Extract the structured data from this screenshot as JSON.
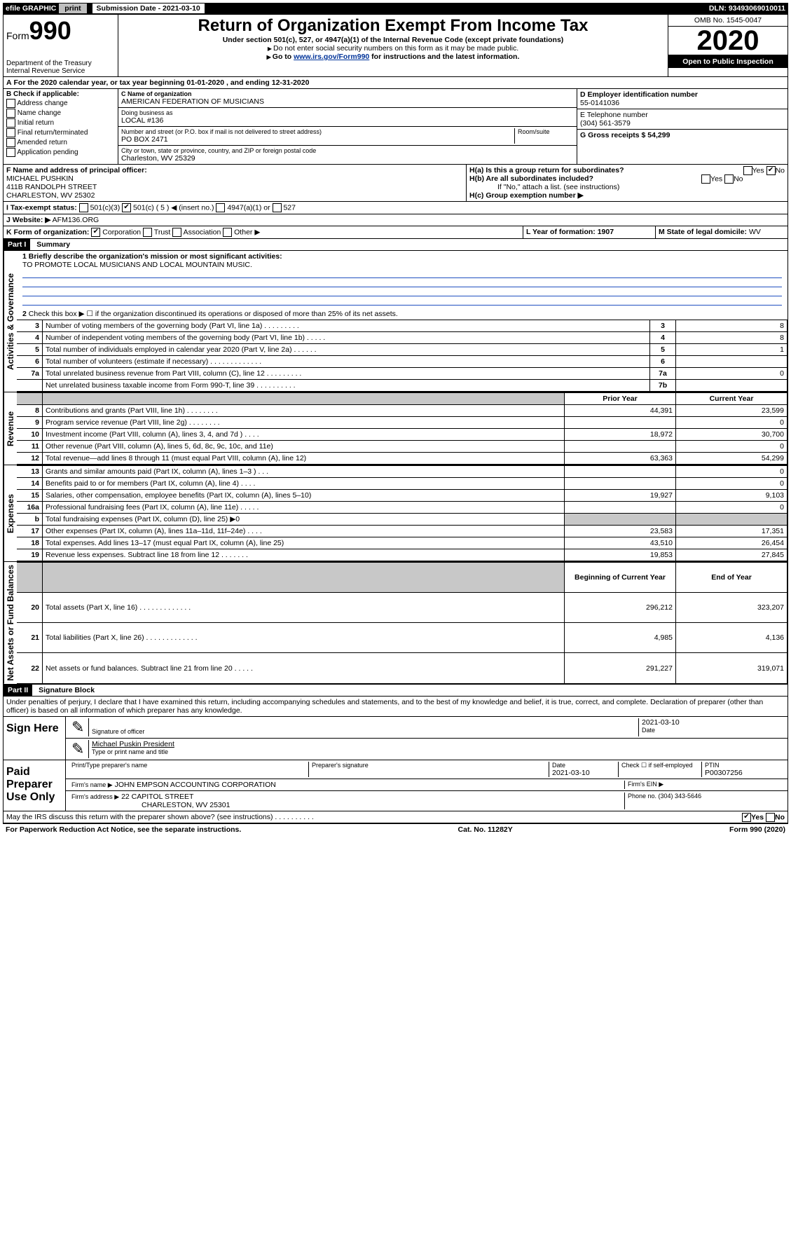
{
  "top_bar": {
    "efile": "efile GRAPHIC",
    "print": "print",
    "sub_date_label": "Submission Date - 2021-03-10",
    "dln": "DLN: 93493069010011"
  },
  "header": {
    "form_label": "Form",
    "form_number": "990",
    "dept": "Department of the Treasury",
    "irs": "Internal Revenue Service",
    "title": "Return of Organization Exempt From Income Tax",
    "subtitle": "Under section 501(c), 527, or 4947(a)(1) of the Internal Revenue Code (except private foundations)",
    "note1": "Do not enter social security numbers on this form as it may be made public.",
    "note2_a": "Go to ",
    "note2_link": "www.irs.gov/Form990",
    "note2_b": " for instructions and the latest information.",
    "omb": "OMB No. 1545-0047",
    "year": "2020",
    "public": "Open to Public Inspection"
  },
  "row_a": {
    "text": "For the 2020 calendar year, or tax year beginning 01-01-2020   , and ending 12-31-2020"
  },
  "col_b": {
    "header": "B Check if applicable:",
    "items": [
      "Address change",
      "Name change",
      "Initial return",
      "Final return/terminated",
      "Amended return",
      "Application pending"
    ]
  },
  "org": {
    "c_label": "C Name of organization",
    "name": "AMERICAN FEDERATION OF MUSICIANS",
    "dba_label": "Doing business as",
    "dba": "LOCAL #136",
    "addr_label": "Number and street (or P.O. box if mail is not delivered to street address)",
    "room_label": "Room/suite",
    "addr": "PO BOX 2471",
    "city_label": "City or town, state or province, country, and ZIP or foreign postal code",
    "city": "Charleston, WV  25329",
    "d_label": "D Employer identification number",
    "ein": "55-0141036",
    "e_label": "E Telephone number",
    "phone": "(304) 561-3579",
    "g_label": "G Gross receipts $ 54,299"
  },
  "officer": {
    "f_label": "F  Name and address of principal officer:",
    "name": "MICHAEL PUSHKIN",
    "addr1": "411B RANDOLPH STREET",
    "addr2": "CHARLESTON, WV  25302"
  },
  "h": {
    "a": "H(a)  Is this a group return for subordinates?",
    "b": "H(b)  Are all subordinates included?",
    "b_note": "If \"No,\" attach a list. (see instructions)",
    "c": "H(c)  Group exemption number ▶"
  },
  "tax_status": {
    "i_label": "I  Tax-exempt status:",
    "opt1": "501(c)(3)",
    "opt2": "501(c) ( 5 ) ◀ (insert no.)",
    "opt3": "4947(a)(1) or",
    "opt4": "527"
  },
  "website": {
    "j_label": "J Website: ▶",
    "value": "AFM136.ORG"
  },
  "k": {
    "label": "K Form of organization:",
    "opts": [
      "Corporation",
      "Trust",
      "Association",
      "Other ▶"
    ]
  },
  "l": {
    "label": "L Year of formation: 1907"
  },
  "m": {
    "label": "M State of legal domicile:",
    "value": "WV"
  },
  "part1": {
    "header": "Part I",
    "title": "Summary"
  },
  "summary": {
    "q1_label": "1  Briefly describe the organization's mission or most significant activities:",
    "q1_text": "TO PROMOTE LOCAL MUSICIANS AND LOCAL MOUNTAIN MUSIC.",
    "q2": "Check this box ▶ ☐  if the organization discontinued its operations or disposed of more than 25% of its net assets.",
    "rows_gov": [
      {
        "n": "3",
        "desc": "Number of voting members of the governing body (Part VI, line 1a)  .    .    .    .    .    .    .    .    .",
        "lab": "3",
        "v2": "8"
      },
      {
        "n": "4",
        "desc": "Number of independent voting members of the governing body (Part VI, line 1b)  .    .    .    .    .",
        "lab": "4",
        "v2": "8"
      },
      {
        "n": "5",
        "desc": "Total number of individuals employed in calendar year 2020 (Part V, line 2a)  .    .    .    .    .    .",
        "lab": "5",
        "v2": "1"
      },
      {
        "n": "6",
        "desc": "Total number of volunteers (estimate if necessary)  .    .    .    .    .    .    .    .    .    .    .    .    .",
        "lab": "6",
        "v2": ""
      },
      {
        "n": "7a",
        "desc": "Total unrelated business revenue from Part VIII, column (C), line 12  .    .    .    .    .    .    .    .    .",
        "lab": "7a",
        "v2": "0"
      },
      {
        "n": "",
        "desc": "Net unrelated business taxable income from Form 990-T, line 39  .    .    .    .    .    .    .    .    .    .",
        "lab": "7b",
        "v2": ""
      }
    ],
    "hdr_prior": "Prior Year",
    "hdr_current": "Current Year",
    "rows_rev": [
      {
        "n": "8",
        "desc": "Contributions and grants (Part VIII, line 1h)  .    .    .    .    .    .    .    .",
        "v1": "44,391",
        "v2": "23,599"
      },
      {
        "n": "9",
        "desc": "Program service revenue (Part VIII, line 2g)  .    .    .    .    .    .    .    .",
        "v1": "",
        "v2": "0"
      },
      {
        "n": "10",
        "desc": "Investment income (Part VIII, column (A), lines 3, 4, and 7d )  .    .    .    .",
        "v1": "18,972",
        "v2": "30,700"
      },
      {
        "n": "11",
        "desc": "Other revenue (Part VIII, column (A), lines 5, 6d, 8c, 9c, 10c, and 11e)",
        "v1": "",
        "v2": "0"
      },
      {
        "n": "12",
        "desc": "Total revenue—add lines 8 through 11 (must equal Part VIII, column (A), line 12)",
        "v1": "63,363",
        "v2": "54,299"
      }
    ],
    "rows_exp": [
      {
        "n": "13",
        "desc": "Grants and similar amounts paid (Part IX, column (A), lines 1–3 )  .    .    .",
        "v1": "",
        "v2": "0"
      },
      {
        "n": "14",
        "desc": "Benefits paid to or for members (Part IX, column (A), line 4)  .    .    .    .",
        "v1": "",
        "v2": "0"
      },
      {
        "n": "15",
        "desc": "Salaries, other compensation, employee benefits (Part IX, column (A), lines 5–10)",
        "v1": "19,927",
        "v2": "9,103"
      },
      {
        "n": "16a",
        "desc": "Professional fundraising fees (Part IX, column (A), line 11e)  .    .    .    .    .",
        "v1": "",
        "v2": "0"
      },
      {
        "n": "b",
        "desc": "Total fundraising expenses (Part IX, column (D), line 25) ▶0",
        "v1": "shaded",
        "v2": "shaded"
      },
      {
        "n": "17",
        "desc": "Other expenses (Part IX, column (A), lines 11a–11d, 11f–24e)  .    .    .    .",
        "v1": "23,583",
        "v2": "17,351"
      },
      {
        "n": "18",
        "desc": "Total expenses. Add lines 13–17 (must equal Part IX, column (A), line 25)",
        "v1": "43,510",
        "v2": "26,454"
      },
      {
        "n": "19",
        "desc": "Revenue less expenses. Subtract line 18 from line 12  .    .    .    .    .    .    .",
        "v1": "19,853",
        "v2": "27,845"
      }
    ],
    "hdr_begin": "Beginning of Current Year",
    "hdr_end": "End of Year",
    "rows_net": [
      {
        "n": "20",
        "desc": "Total assets (Part X, line 16)  .    .    .    .    .    .    .    .    .    .    .    .    .",
        "v1": "296,212",
        "v2": "323,207"
      },
      {
        "n": "21",
        "desc": "Total liabilities (Part X, line 26)  .    .    .    .    .    .    .    .    .    .    .    .    .",
        "v1": "4,985",
        "v2": "4,136"
      },
      {
        "n": "22",
        "desc": "Net assets or fund balances. Subtract line 21 from line 20  .    .    .    .    .",
        "v1": "291,227",
        "v2": "319,071"
      }
    ],
    "vert_gov": "Activities & Governance",
    "vert_rev": "Revenue",
    "vert_exp": "Expenses",
    "vert_net": "Net Assets or Fund Balances"
  },
  "part2": {
    "header": "Part II",
    "title": "Signature Block",
    "perjury": "Under penalties of perjury, I declare that I have examined this return, including accompanying schedules and statements, and to the best of my knowledge and belief, it is true, correct, and complete. Declaration of preparer (other than officer) is based on all information of which preparer has any knowledge."
  },
  "sign": {
    "here": "Sign Here",
    "sig_label": "Signature of officer",
    "date": "2021-03-10",
    "date_label": "Date",
    "name": "Michael Puskin  President",
    "name_label": "Type or print name and title"
  },
  "paid": {
    "label": "Paid Preparer Use Only",
    "prep_name_label": "Print/Type preparer's name",
    "prep_sig_label": "Preparer's signature",
    "date_label": "Date",
    "date": "2021-03-10",
    "check_label": "Check ☐ if self-employed",
    "ptin_label": "PTIN",
    "ptin": "P00307256",
    "firm_name_label": "Firm's name    ▶",
    "firm_name": "JOHN EMPSON ACCOUNTING CORPORATION",
    "firm_ein_label": "Firm's EIN ▶",
    "firm_addr_label": "Firm's address ▶",
    "firm_addr1": "22 CAPITOL STREET",
    "firm_addr2": "CHARLESTON, WV  25301",
    "phone_label": "Phone no. (304) 343-5646"
  },
  "discuss": {
    "text": "May the IRS discuss this return with the preparer shown above? (see instructions)   .    .    .    .    .    .    .    .    .    .",
    "yes": "Yes",
    "no": "No"
  },
  "footer": {
    "left": "For Paperwork Reduction Act Notice, see the separate instructions.",
    "mid": "Cat. No. 11282Y",
    "right": "Form 990 (2020)"
  }
}
